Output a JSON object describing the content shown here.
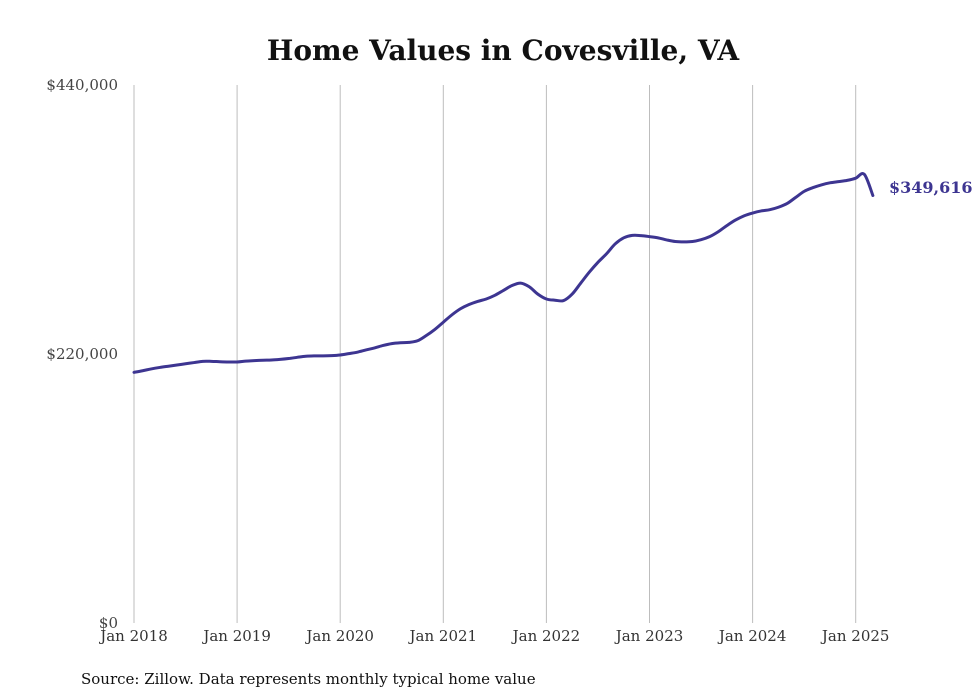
{
  "chart_data": {
    "type": "line",
    "title": "Home Values in Covesville, VA",
    "xlabel": "",
    "ylabel": "",
    "ylim": [
      0,
      440000
    ],
    "yticks": [
      0,
      220000,
      440000
    ],
    "ytick_labels": [
      "$0",
      "$220,000",
      "$440,000"
    ],
    "xlim": [
      "2018-01",
      "2025-03"
    ],
    "xtick_labels": [
      "Jan 2018",
      "Jan 2019",
      "Jan 2020",
      "Jan 2021",
      "Jan 2022",
      "Jan 2023",
      "Jan 2024",
      "Jan 2025"
    ],
    "grid": "vertical",
    "legend": "none",
    "line_color": "#3d3591",
    "end_label": "$349,616",
    "source": "Source: Zillow. Data represents monthly typical home value",
    "series": [
      {
        "x": [
          "2018-01",
          "2018-02",
          "2018-03",
          "2018-04",
          "2018-05",
          "2018-06",
          "2018-07",
          "2018-08",
          "2018-09",
          "2018-10",
          "2018-11",
          "2018-12",
          "2019-01",
          "2019-02",
          "2019-03",
          "2019-04",
          "2019-05",
          "2019-06",
          "2019-07",
          "2019-08",
          "2019-09",
          "2019-10",
          "2019-11",
          "2019-12",
          "2020-01",
          "2020-02",
          "2020-03",
          "2020-04",
          "2020-05",
          "2020-06",
          "2020-07",
          "2020-08",
          "2020-09",
          "2020-10",
          "2020-11",
          "2020-12",
          "2021-01",
          "2021-02",
          "2021-03",
          "2021-04",
          "2021-05",
          "2021-06",
          "2021-07",
          "2021-08",
          "2021-09",
          "2021-10",
          "2021-11",
          "2021-12",
          "2022-01",
          "2022-02",
          "2022-03",
          "2022-04",
          "2022-05",
          "2022-06",
          "2022-07",
          "2022-08",
          "2022-09",
          "2022-10",
          "2022-11",
          "2022-12",
          "2023-01",
          "2023-02",
          "2023-03",
          "2023-04",
          "2023-05",
          "2023-06",
          "2023-07",
          "2023-08",
          "2023-09",
          "2023-10",
          "2023-11",
          "2023-12",
          "2024-01",
          "2024-02",
          "2024-03",
          "2024-04",
          "2024-05",
          "2024-06",
          "2024-07",
          "2024-08",
          "2024-09",
          "2024-10",
          "2024-11",
          "2024-12",
          "2025-01",
          "2025-02",
          "2025-03"
        ],
        "values": [
          205000,
          206300,
          207800,
          209000,
          210000,
          211000,
          212000,
          213000,
          214000,
          214000,
          213700,
          213500,
          213500,
          214200,
          214600,
          214900,
          215100,
          215600,
          216300,
          217300,
          218200,
          218500,
          218500,
          218700,
          219200,
          220300,
          221500,
          223300,
          225000,
          227000,
          228500,
          229200,
          229500,
          230800,
          235000,
          240000,
          246000,
          252000,
          257000,
          260500,
          263000,
          265000,
          268000,
          272000,
          276000,
          278000,
          275000,
          269000,
          265000,
          264000,
          263700,
          269000,
          278000,
          287000,
          295000,
          302000,
          310000,
          315000,
          317000,
          316800,
          316000,
          315000,
          313300,
          312000,
          311700,
          312000,
          313500,
          316000,
          320000,
          325000,
          329500,
          333000,
          335300,
          337000,
          338000,
          340000,
          343000,
          348000,
          353000,
          356000,
          358300,
          360000,
          361000,
          362000,
          363800,
          367000,
          349616
        ]
      }
    ]
  }
}
